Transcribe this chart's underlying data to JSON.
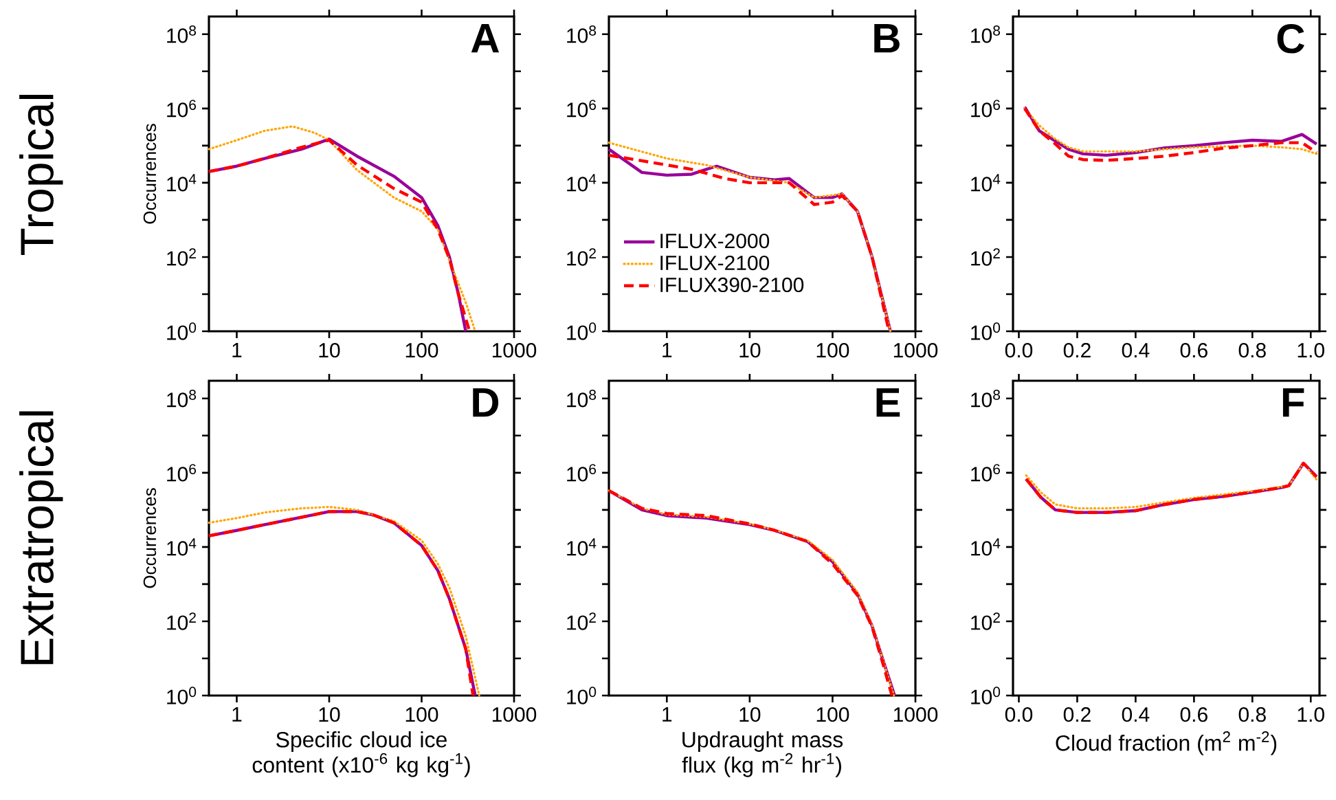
{
  "chart_data": [
    {
      "type": "line",
      "title": "A",
      "ylabel": "Occurrences",
      "annotations": [
        "Tropical"
      ],
      "log": "xy",
      "xlim": [
        0.5,
        1000
      ],
      "xticks": [
        1,
        10,
        100,
        1000
      ],
      "ylim": [
        1,
        300000000
      ],
      "yticks": [
        {
          "value": 1,
          "label": "10$^{0}$"
        },
        {
          "value": 10,
          "label": null
        },
        {
          "value": 100,
          "label": "10$^{2}$"
        },
        {
          "value": 1000,
          "label": null
        },
        {
          "value": 10000,
          "label": "10$^{4}$"
        },
        {
          "value": 100000,
          "label": null
        },
        {
          "value": 1000000,
          "label": "10$^{6}$"
        },
        {
          "value": 10000000,
          "label": null
        },
        {
          "value": 100000000,
          "label": "10$^{8}$"
        }
      ],
      "series": [
        {
          "color": "#990099",
          "line_style": "solid",
          "x": [
            0.5,
            1,
            2,
            5,
            10,
            20,
            50,
            100,
            150,
            200,
            250,
            300
          ],
          "values": [
            20000,
            28000,
            45000,
            80000,
            150000,
            52000,
            15000,
            4000,
            700,
            100,
            10,
            1
          ]
        },
        {
          "color": "#ffa500",
          "line_style": "dotted",
          "x": [
            0.5,
            1,
            2,
            4,
            7,
            10,
            20,
            50,
            100,
            150,
            200,
            300,
            380
          ],
          "values": [
            80000,
            140000,
            250000,
            330000,
            220000,
            140000,
            22000,
            4000,
            1700,
            550,
            80,
            6,
            1
          ]
        },
        {
          "color": "#ff0000",
          "line_style": "dashed",
          "x": [
            0.5,
            1,
            2,
            5,
            10,
            20,
            50,
            100,
            150,
            200,
            250,
            330
          ],
          "values": [
            20000,
            28000,
            45000,
            90000,
            140000,
            30000,
            7000,
            3000,
            550,
            90,
            10,
            1
          ]
        }
      ]
    },
    {
      "type": "line",
      "title": "B",
      "log": "xy",
      "xlim": [
        0.2,
        1000
      ],
      "xticks": [
        1,
        10,
        100,
        1000
      ],
      "ylim": [
        1,
        300000000
      ],
      "legend": "bottom left",
      "yticks": [
        {
          "value": 1,
          "label": "10$^{0}$"
        },
        {
          "value": 10,
          "label": null
        },
        {
          "value": 100,
          "label": "10$^{2}$"
        },
        {
          "value": 1000,
          "label": null
        },
        {
          "value": 10000,
          "label": "10$^{4}$"
        },
        {
          "value": 100000,
          "label": null
        },
        {
          "value": 1000000,
          "label": "10$^{6}$"
        },
        {
          "value": 10000000,
          "label": null
        },
        {
          "value": 100000000,
          "label": "10$^{8}$"
        }
      ],
      "series": [
        {
          "name": "IFLUX-2000",
          "color": "#990099",
          "line_style": "solid",
          "x": [
            0.2,
            0.5,
            1,
            2,
            3,
            4,
            10,
            20,
            30,
            60,
            100,
            130,
            200,
            300,
            500
          ],
          "values": [
            80000,
            19000,
            16000,
            17000,
            23000,
            28000,
            14000,
            12000,
            13000,
            4000,
            4000,
            5000,
            1700,
            100,
            1
          ]
        },
        {
          "name": "IFLUX-2100",
          "color": "#ffa500",
          "line_style": "dotted",
          "x": [
            0.2,
            1,
            3,
            10,
            30,
            60,
            130,
            200,
            300,
            500
          ],
          "values": [
            120000,
            45000,
            30000,
            14000,
            10000,
            4000,
            5000,
            1700,
            100,
            1
          ]
        },
        {
          "name": "IFLUX390-2100",
          "color": "#ff0000",
          "line_style": "dashed",
          "x": [
            0.2,
            1,
            2,
            5,
            10,
            30,
            60,
            100,
            130,
            200,
            300,
            480
          ],
          "values": [
            55000,
            30000,
            23000,
            13000,
            10000,
            10000,
            2600,
            3000,
            4500,
            1700,
            100,
            1
          ]
        }
      ]
    },
    {
      "type": "line",
      "title": "C",
      "log": "y",
      "xlim": [
        -0.02,
        1.03
      ],
      "ylim": [
        1,
        300000000
      ],
      "xticks": [
        {
          "value": 0,
          "label": "0.0"
        },
        {
          "value": 0.2,
          "label": "0.2"
        },
        {
          "value": 0.4,
          "label": "0.4"
        },
        {
          "value": 0.6,
          "label": "0.6"
        },
        {
          "value": 0.8,
          "label": "0.8"
        },
        {
          "value": 1,
          "label": "1.0"
        }
      ],
      "yticks": [
        {
          "value": 1,
          "label": "10$^{0}$"
        },
        {
          "value": 10,
          "label": null
        },
        {
          "value": 100,
          "label": "10$^{2}$"
        },
        {
          "value": 1000,
          "label": null
        },
        {
          "value": 10000,
          "label": "10$^{4}$"
        },
        {
          "value": 100000,
          "label": null
        },
        {
          "value": 1000000,
          "label": "10$^{6}$"
        },
        {
          "value": 10000000,
          "label": null
        },
        {
          "value": 100000000,
          "label": "10$^{8}$"
        }
      ],
      "series": [
        {
          "color": "#990099",
          "line_style": "solid",
          "x": [
            0.02,
            0.07,
            0.12,
            0.17,
            0.22,
            0.3,
            0.4,
            0.5,
            0.6,
            0.7,
            0.8,
            0.9,
            0.97,
            1.02
          ],
          "values": [
            1100000,
            250000,
            140000,
            80000,
            60000,
            55000,
            65000,
            87000,
            100000,
            120000,
            140000,
            130000,
            200000,
            110000
          ]
        },
        {
          "color": "#ffa500",
          "line_style": "dotted",
          "x": [
            0.02,
            0.07,
            0.12,
            0.17,
            0.22,
            0.3,
            0.4,
            0.5,
            0.6,
            0.7,
            0.8,
            0.9,
            0.97,
            1.02
          ],
          "values": [
            1000000,
            350000,
            160000,
            90000,
            70000,
            70000,
            70000,
            80000,
            90000,
            95000,
            100000,
            90000,
            80000,
            60000
          ]
        },
        {
          "color": "#ff0000",
          "line_style": "dashed",
          "x": [
            0.02,
            0.07,
            0.12,
            0.17,
            0.22,
            0.3,
            0.4,
            0.5,
            0.6,
            0.7,
            0.8,
            0.9,
            0.97,
            1.02
          ],
          "values": [
            1000000,
            250000,
            120000,
            52000,
            42000,
            40000,
            45000,
            52000,
            65000,
            85000,
            100000,
            120000,
            120000,
            65000
          ]
        }
      ]
    },
    {
      "type": "line",
      "title": "D",
      "ylabel": "Occurrences",
      "xlabel": "Specific cloud ice content (x10$^{-6}$ kg kg$^{-1}$)",
      "annotations": [
        "Extratropical"
      ],
      "log": "xy",
      "xlim": [
        0.5,
        1000
      ],
      "xticks": [
        1,
        10,
        100,
        1000
      ],
      "ylim": [
        1,
        300000000
      ],
      "yticks": [
        {
          "value": 1,
          "label": "10$^{0}$"
        },
        {
          "value": 10,
          "label": null
        },
        {
          "value": 100,
          "label": "10$^{2}$"
        },
        {
          "value": 1000,
          "label": null
        },
        {
          "value": 10000,
          "label": "10$^{4}$"
        },
        {
          "value": 100000,
          "label": null
        },
        {
          "value": 1000000,
          "label": "10$^{6}$"
        },
        {
          "value": 10000000,
          "label": null
        },
        {
          "value": 100000000,
          "label": "10$^{8}$"
        }
      ],
      "series": [
        {
          "color": "#990099",
          "line_style": "solid",
          "x": [
            0.5,
            1,
            2,
            5,
            10,
            20,
            30,
            50,
            100,
            150,
            200,
            300,
            380
          ],
          "values": [
            20000,
            28000,
            40000,
            63000,
            90000,
            90000,
            73000,
            45000,
            11000,
            2300,
            400,
            18,
            1
          ]
        },
        {
          "color": "#ffa500",
          "line_style": "dotted",
          "x": [
            0.5,
            1,
            2,
            5,
            10,
            20,
            50,
            100,
            150,
            200,
            300,
            420
          ],
          "values": [
            45000,
            60000,
            85000,
            110000,
            120000,
            100000,
            50000,
            15000,
            3500,
            800,
            40,
            1
          ]
        },
        {
          "color": "#ff0000",
          "line_style": "dashed",
          "x": [
            0.5,
            1,
            2,
            5,
            10,
            20,
            30,
            50,
            100,
            150,
            200,
            300,
            360
          ],
          "values": [
            20000,
            28000,
            40000,
            63000,
            90000,
            90000,
            73000,
            45000,
            11000,
            2300,
            400,
            18,
            1
          ]
        }
      ]
    },
    {
      "type": "line",
      "title": "E",
      "xlabel": "Updraught mass flux (kg m$^{-2}$ hr$^{-1}$)",
      "log": "xy",
      "xlim": [
        0.2,
        1000
      ],
      "xticks": [
        1,
        10,
        100,
        1000
      ],
      "ylim": [
        1,
        300000000
      ],
      "yticks": [
        {
          "value": 1,
          "label": "10$^{0}$"
        },
        {
          "value": 10,
          "label": null
        },
        {
          "value": 100,
          "label": "10$^{2}$"
        },
        {
          "value": 1000,
          "label": null
        },
        {
          "value": 10000,
          "label": "10$^{4}$"
        },
        {
          "value": 100000,
          "label": null
        },
        {
          "value": 1000000,
          "label": "10$^{6}$"
        },
        {
          "value": 10000000,
          "label": null
        },
        {
          "value": 100000000,
          "label": "10$^{8}$"
        }
      ],
      "series": [
        {
          "color": "#990099",
          "line_style": "solid",
          "x": [
            0.2,
            0.5,
            1,
            3,
            10,
            20,
            50,
            100,
            200,
            300,
            400,
            560
          ],
          "values": [
            330000,
            100000,
            70000,
            60000,
            40000,
            28000,
            14000,
            4000,
            550,
            75,
            10,
            1
          ]
        },
        {
          "color": "#ffa500",
          "line_style": "dotted",
          "x": [
            0.2,
            0.5,
            1,
            3,
            10,
            20,
            50,
            100,
            200,
            300,
            400,
            550
          ],
          "values": [
            330000,
            110000,
            75000,
            65000,
            42000,
            29000,
            15000,
            4500,
            600,
            80,
            10,
            1
          ]
        },
        {
          "color": "#ff0000",
          "line_style": "dashed",
          "x": [
            0.2,
            0.5,
            1,
            3,
            10,
            20,
            50,
            100,
            200,
            300,
            400,
            520
          ],
          "values": [
            330000,
            110000,
            80000,
            70000,
            42000,
            28000,
            14000,
            3500,
            500,
            70,
            8,
            1
          ]
        }
      ]
    },
    {
      "type": "line",
      "title": "F",
      "xlabel": "Cloud fraction (m$^{2}$ m$^{-2}$)",
      "log": "y",
      "xlim": [
        -0.02,
        1.03
      ],
      "ylim": [
        1,
        300000000
      ],
      "xticks": [
        {
          "value": 0,
          "label": "0.0"
        },
        {
          "value": 0.2,
          "label": "0.2"
        },
        {
          "value": 0.4,
          "label": "0.4"
        },
        {
          "value": 0.6,
          "label": "0.6"
        },
        {
          "value": 0.8,
          "label": "0.8"
        },
        {
          "value": 1,
          "label": "1.0"
        }
      ],
      "yticks": [
        {
          "value": 1,
          "label": "10$^{0}$"
        },
        {
          "value": 10,
          "label": null
        },
        {
          "value": 100,
          "label": "10$^{2}$"
        },
        {
          "value": 1000,
          "label": null
        },
        {
          "value": 10000,
          "label": "10$^{4}$"
        },
        {
          "value": 100000,
          "label": null
        },
        {
          "value": 1000000,
          "label": "10$^{6}$"
        },
        {
          "value": 10000000,
          "label": null
        },
        {
          "value": 100000000,
          "label": "10$^{8}$"
        }
      ],
      "series": [
        {
          "color": "#990099",
          "line_style": "solid",
          "x": [
            0.025,
            0.075,
            0.125,
            0.2,
            0.3,
            0.4,
            0.5,
            0.6,
            0.7,
            0.8,
            0.9,
            0.925,
            0.975,
            1.02
          ],
          "values": [
            680000,
            220000,
            100000,
            85000,
            85000,
            95000,
            140000,
            190000,
            230000,
            300000,
            400000,
            450000,
            1800000,
            780000
          ]
        },
        {
          "color": "#ffa500",
          "line_style": "dotted",
          "x": [
            0.025,
            0.075,
            0.125,
            0.2,
            0.3,
            0.4,
            0.5,
            0.6,
            0.7,
            0.8,
            0.9,
            0.925,
            0.975,
            1.02
          ],
          "values": [
            850000,
            300000,
            140000,
            110000,
            110000,
            120000,
            160000,
            210000,
            260000,
            320000,
            420000,
            450000,
            1800000,
            650000
          ]
        },
        {
          "color": "#ff0000",
          "line_style": "dashed",
          "x": [
            0.025,
            0.075,
            0.125,
            0.2,
            0.3,
            0.4,
            0.5,
            0.6,
            0.7,
            0.8,
            0.9,
            0.925,
            0.975,
            1.02
          ],
          "values": [
            680000,
            220000,
            100000,
            85000,
            85000,
            95000,
            140000,
            190000,
            230000,
            300000,
            400000,
            450000,
            1800000,
            780000
          ]
        }
      ]
    }
  ]
}
